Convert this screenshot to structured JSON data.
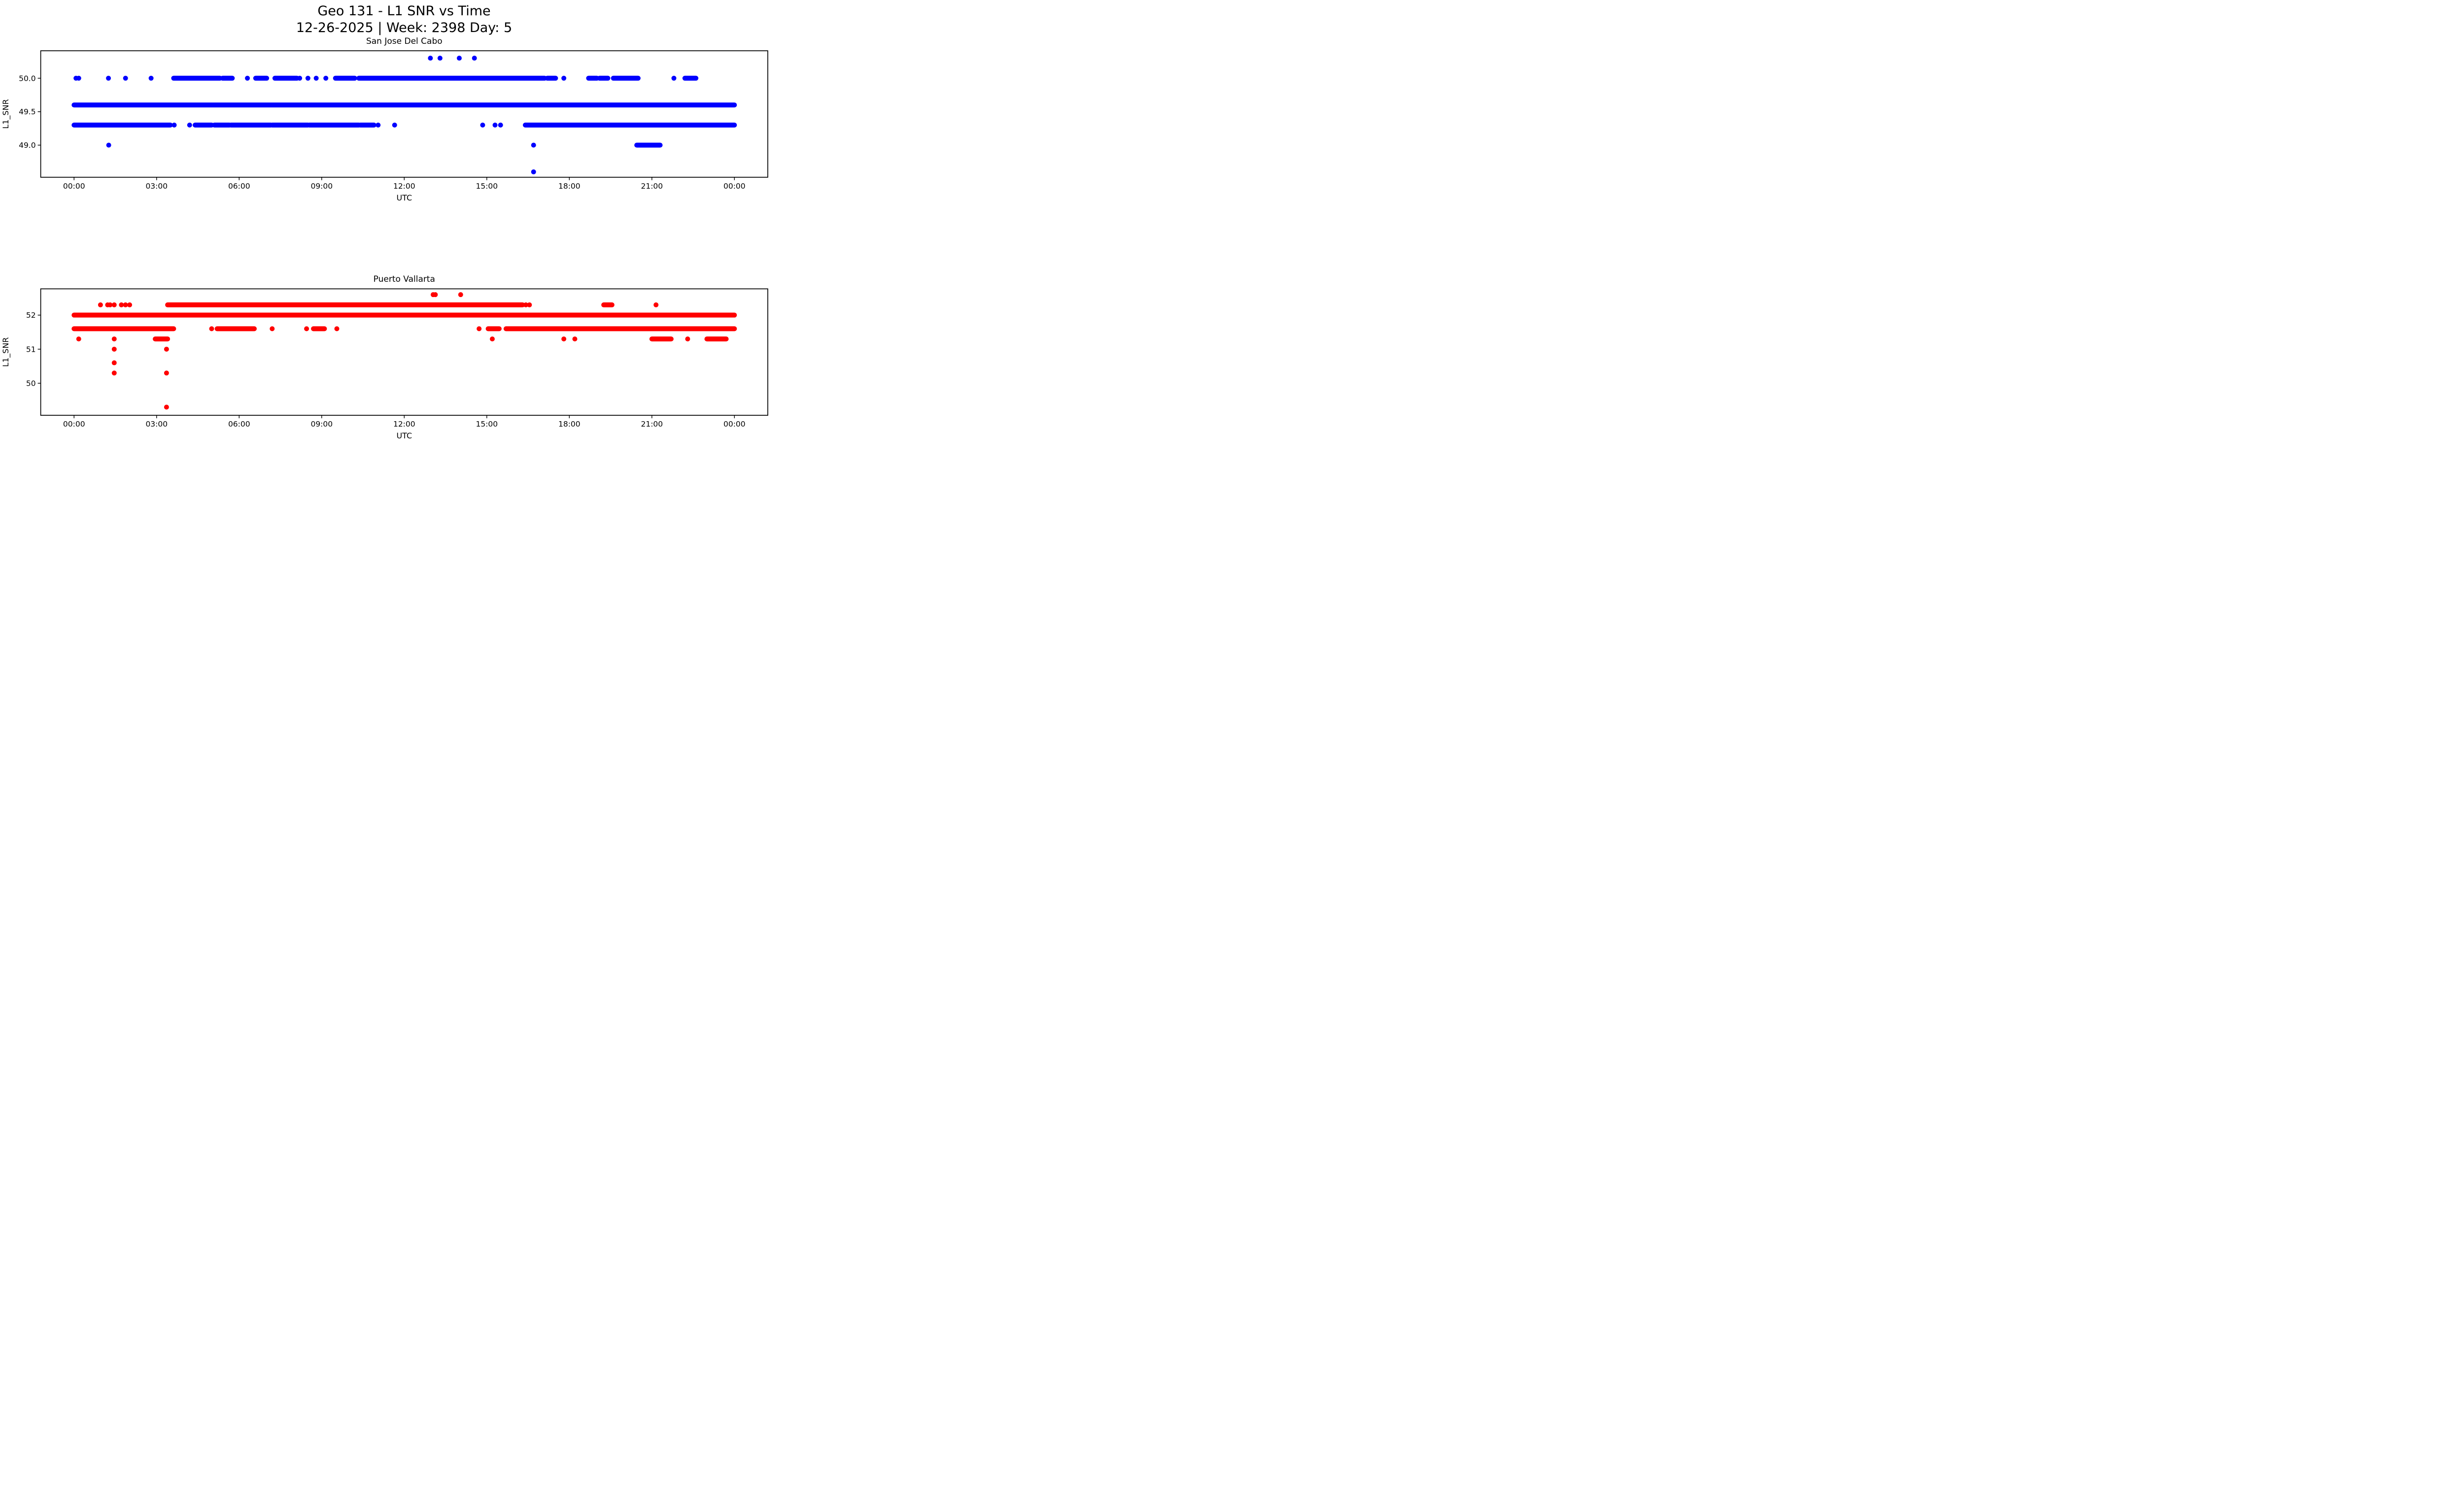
{
  "figure": {
    "suptitle_line1": "Geo 131 - L1 SNR vs Time",
    "suptitle_line2": "12-26-2025 | Week: 2398 Day: 5",
    "background_color": "#ffffff",
    "text_color": "#000000"
  },
  "chart_data": [
    {
      "type": "scatter",
      "title": "San Jose Del Cabo",
      "xlabel": "UTC",
      "ylabel": "L1_SNR",
      "marker_color": "#0000ff",
      "marker_diameter_px": 10,
      "grid": false,
      "legend": "none",
      "xlim_hours": [
        -1.212,
        25.212
      ],
      "ylim": [
        48.52,
        50.41
      ],
      "x_ticks": [
        {
          "hour": 0,
          "label": "00:00"
        },
        {
          "hour": 3,
          "label": "03:00"
        },
        {
          "hour": 6,
          "label": "06:00"
        },
        {
          "hour": 9,
          "label": "09:00"
        },
        {
          "hour": 12,
          "label": "12:00"
        },
        {
          "hour": 15,
          "label": "15:00"
        },
        {
          "hour": 18,
          "label": "18:00"
        },
        {
          "hour": 21,
          "label": "21:00"
        },
        {
          "hour": 24,
          "label": "00:00"
        }
      ],
      "y_ticks": [
        {
          "value": 50.0,
          "label": "50.0"
        },
        {
          "value": 49.5,
          "label": "49.5"
        },
        {
          "value": 49.0,
          "label": "49.0"
        }
      ],
      "rows": [
        {
          "y": 50.3,
          "points": [
            12.95,
            13.3,
            14.0,
            14.55
          ],
          "segments": []
        },
        {
          "y": 50.0,
          "points": [
            0.07,
            0.17,
            1.25,
            1.87,
            2.8,
            6.3,
            8.2,
            8.5,
            8.8,
            9.15,
            17.8,
            21.8
          ],
          "segments": [
            [
              3.62,
              5.3
            ],
            [
              5.4,
              5.75
            ],
            [
              6.6,
              7.0
            ],
            [
              7.3,
              8.1
            ],
            [
              9.5,
              10.2
            ],
            [
              10.35,
              17.1
            ],
            [
              17.2,
              17.5
            ],
            [
              18.7,
              19.0
            ],
            [
              19.1,
              19.4
            ],
            [
              19.6,
              20.5
            ],
            [
              22.2,
              22.6
            ]
          ]
        },
        {
          "y": 49.6,
          "points": [],
          "segments": [
            [
              0.0,
              24.0
            ]
          ]
        },
        {
          "y": 49.3,
          "points": [
            3.64,
            4.2,
            11.05,
            11.65,
            14.85,
            15.3,
            15.5
          ],
          "segments": [
            [
              0.0,
              3.5
            ],
            [
              4.4,
              5.0
            ],
            [
              5.1,
              5.65
            ],
            [
              5.7,
              7.15
            ],
            [
              7.2,
              8.5
            ],
            [
              8.55,
              10.35
            ],
            [
              10.4,
              10.9
            ],
            [
              16.4,
              24.0
            ]
          ]
        },
        {
          "y": 49.0,
          "points": [
            1.26,
            16.7
          ],
          "segments": [
            [
              20.45,
              21.3
            ]
          ]
        },
        {
          "y": 48.6,
          "points": [
            16.7
          ],
          "segments": []
        }
      ]
    },
    {
      "type": "scatter",
      "title": "Puerto Vallarta",
      "xlabel": "UTC",
      "ylabel": "L1_SNR",
      "marker_color": "#ff0000",
      "marker_diameter_px": 10,
      "grid": false,
      "legend": "none",
      "xlim_hours": [
        -1.212,
        25.212
      ],
      "ylim": [
        49.06,
        52.77
      ],
      "x_ticks": [
        {
          "hour": 0,
          "label": "00:00"
        },
        {
          "hour": 3,
          "label": "03:00"
        },
        {
          "hour": 6,
          "label": "06:00"
        },
        {
          "hour": 9,
          "label": "09:00"
        },
        {
          "hour": 12,
          "label": "12:00"
        },
        {
          "hour": 15,
          "label": "15:00"
        },
        {
          "hour": 18,
          "label": "18:00"
        },
        {
          "hour": 21,
          "label": "21:00"
        },
        {
          "hour": 24,
          "label": "00:00"
        }
      ],
      "y_ticks": [
        {
          "value": 52,
          "label": "52"
        },
        {
          "value": 51,
          "label": "51"
        },
        {
          "value": 50,
          "label": "50"
        }
      ],
      "rows": [
        {
          "y": 52.6,
          "points": [
            13.05,
            13.13,
            14.05
          ],
          "segments": []
        },
        {
          "y": 52.3,
          "points": [
            0.96,
            1.22,
            1.31,
            1.46,
            1.72,
            1.87,
            2.02,
            16.42,
            16.55,
            21.15
          ],
          "segments": [
            [
              3.4,
              16.3
            ],
            [
              19.25,
              19.55
            ]
          ]
        },
        {
          "y": 52.0,
          "points": [],
          "segments": [
            [
              0.0,
              24.0
            ]
          ]
        },
        {
          "y": 51.6,
          "points": [
            5.0,
            7.2,
            8.45,
            9.55,
            14.72
          ],
          "segments": [
            [
              0.0,
              3.62
            ],
            [
              5.2,
              6.55
            ],
            [
              8.7,
              9.1
            ],
            [
              15.05,
              15.45
            ],
            [
              15.7,
              24.0
            ]
          ]
        },
        {
          "y": 51.3,
          "points": [
            0.17,
            1.46,
            15.2,
            17.8,
            18.2,
            22.3
          ],
          "segments": [
            [
              2.95,
              3.4
            ],
            [
              21.0,
              21.7
            ],
            [
              23.0,
              23.7
            ]
          ]
        },
        {
          "y": 51.0,
          "points": [
            1.46,
            3.36
          ],
          "segments": []
        },
        {
          "y": 50.6,
          "points": [
            1.46
          ],
          "segments": []
        },
        {
          "y": 50.3,
          "points": [
            1.46,
            3.36
          ],
          "segments": []
        },
        {
          "y": 49.3,
          "points": [
            3.36
          ],
          "segments": []
        }
      ]
    }
  ]
}
